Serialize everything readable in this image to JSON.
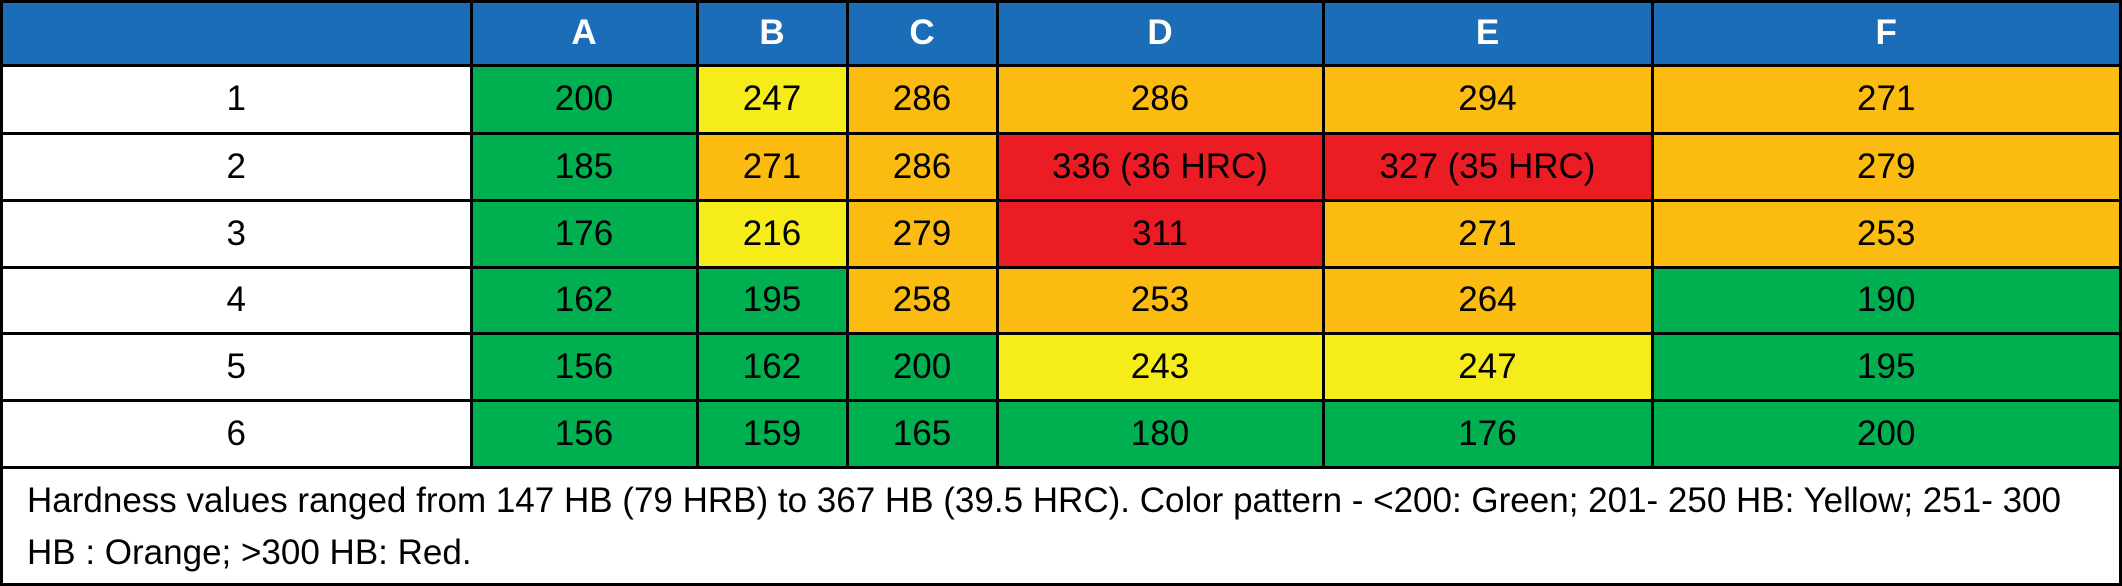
{
  "table": {
    "columns": [
      "A",
      "B",
      "C",
      "D",
      "E",
      "F"
    ],
    "header_color": "#1b6db8",
    "rows": [
      {
        "label": "1",
        "cells": [
          200,
          247,
          286,
          286,
          294,
          271
        ],
        "colors": [
          "#00b050",
          "#f5ec1a",
          "#fbbb10",
          "#fbbb10",
          "#fbbb10",
          "#fbbb10"
        ]
      },
      {
        "label": "2",
        "cells": [
          185,
          271,
          286,
          "336 (36 HRC)",
          "327 (35 HRC)",
          279
        ],
        "colors": [
          "#00b050",
          "#fbbb10",
          "#fbbb10",
          "#ec1c24",
          "#ec1c24",
          "#fbbb10"
        ]
      },
      {
        "label": "3",
        "cells": [
          176,
          216,
          279,
          311,
          271,
          253
        ],
        "colors": [
          "#00b050",
          "#f5ec1a",
          "#fbbb10",
          "#ec1c24",
          "#fbbb10",
          "#fbbb10"
        ]
      },
      {
        "label": "4",
        "cells": [
          162,
          195,
          258,
          253,
          264,
          190
        ],
        "colors": [
          "#00b050",
          "#00b050",
          "#fbbb10",
          "#fbbb10",
          "#fbbb10",
          "#00b050"
        ]
      },
      {
        "label": "5",
        "cells": [
          156,
          162,
          200,
          243,
          247,
          195
        ],
        "colors": [
          "#00b050",
          "#00b050",
          "#00b050",
          "#f5ec1a",
          "#f5ec1a",
          "#00b050"
        ]
      },
      {
        "label": "6",
        "cells": [
          156,
          159,
          165,
          180,
          176,
          200
        ],
        "colors": [
          "#00b050",
          "#00b050",
          "#00b050",
          "#00b050",
          "#00b050",
          "#00b050"
        ]
      }
    ],
    "note": "Hardness values ranged from 147 HB (79 HRB) to 367 HB (39.5 HRC). Color pattern - <200: Green; 201- 250 HB: Yellow; 251- 300 HB : Orange; >300 HB: Red."
  }
}
